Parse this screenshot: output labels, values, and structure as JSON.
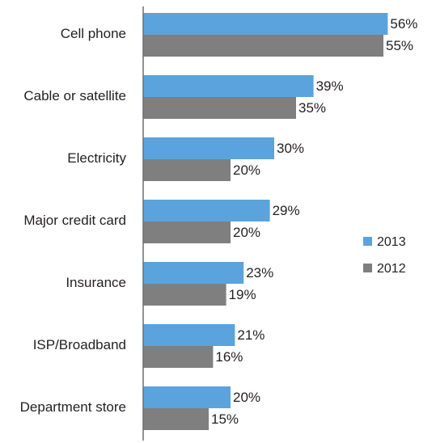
{
  "chart_data": {
    "type": "bar",
    "orientation": "horizontal",
    "title": "",
    "xlabel": "",
    "ylabel": "",
    "categories": [
      "Cell phone",
      "Cable or satellite",
      "Electricity",
      "Major credit card",
      "Insurance",
      "ISP/Broadband",
      "Department store"
    ],
    "series": [
      {
        "name": "2013",
        "values": [
          56,
          39,
          30,
          29,
          23,
          21,
          20
        ],
        "labels": [
          "56%",
          "39%",
          "30%",
          "29%",
          "23%",
          "21%",
          "20%"
        ],
        "color": "#5ba3dc"
      },
      {
        "name": "2012",
        "values": [
          55,
          35,
          20,
          20,
          19,
          16,
          15
        ],
        "labels": [
          "55%",
          "35%",
          "20%",
          "20%",
          "19%",
          "16%",
          "15%"
        ],
        "color": "#7f7f7f"
      }
    ],
    "xlim": [
      0,
      60
    ],
    "grid": false,
    "legend_position": "right"
  }
}
